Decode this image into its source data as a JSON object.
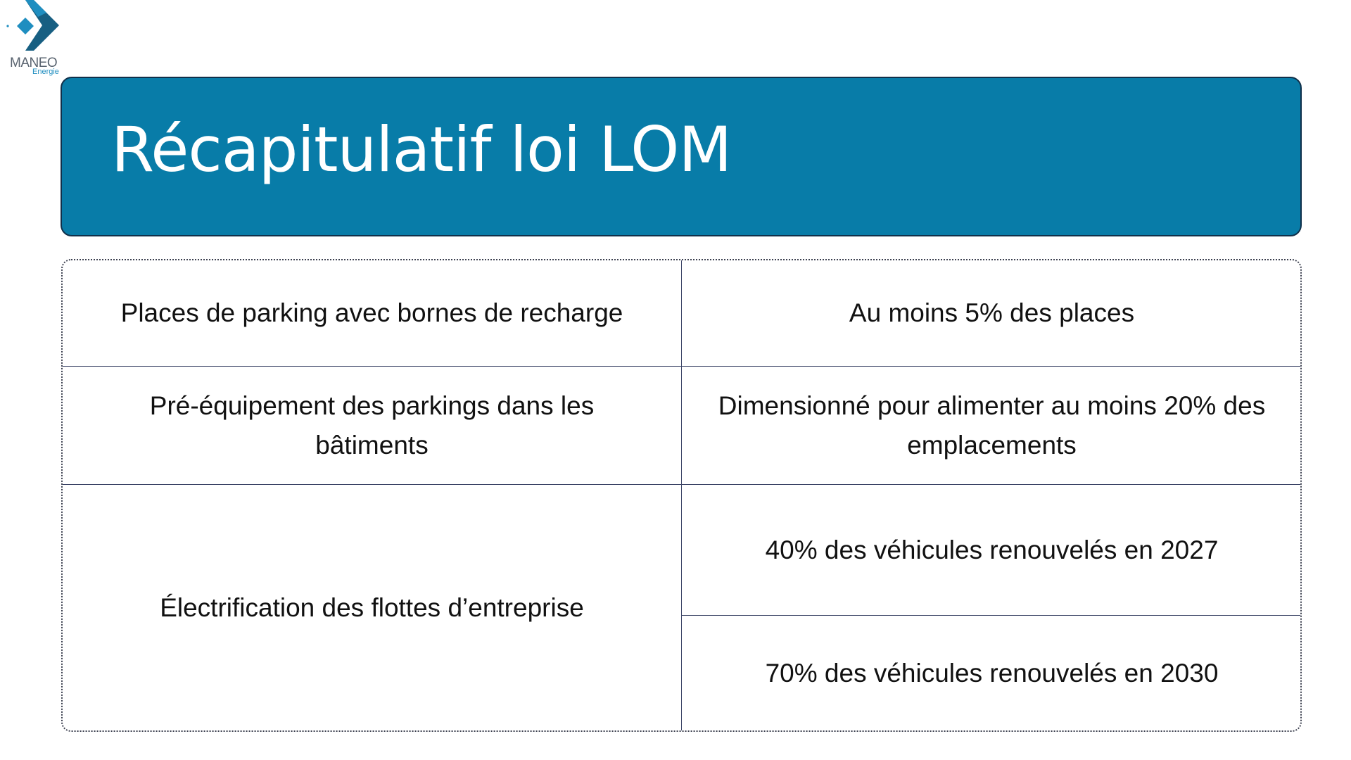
{
  "logo": {
    "name": "MANEO",
    "sub": "Energie",
    "colors": {
      "dark": "#175f82",
      "light": "#1f8ec0",
      "text": "#5a6470"
    }
  },
  "title": "Récapitulatif loi LOM",
  "colors": {
    "banner": "#087ca8",
    "banner_border": "#10304a",
    "grid": "#3b4466"
  },
  "table": {
    "rows": [
      {
        "left": "Places de parking avec bornes de recharge",
        "right": [
          "Au moins 5% des places"
        ]
      },
      {
        "left": "Pré-équipement des parkings dans les bâtiments",
        "right": [
          "Dimensionné pour alimenter au moins 20% des emplacements"
        ]
      },
      {
        "left": "Électrification des flottes d’entreprise",
        "right": [
          "40% des véhicules renouvelés en 2027",
          "70% des véhicules renouvelés en 2030"
        ]
      }
    ]
  }
}
